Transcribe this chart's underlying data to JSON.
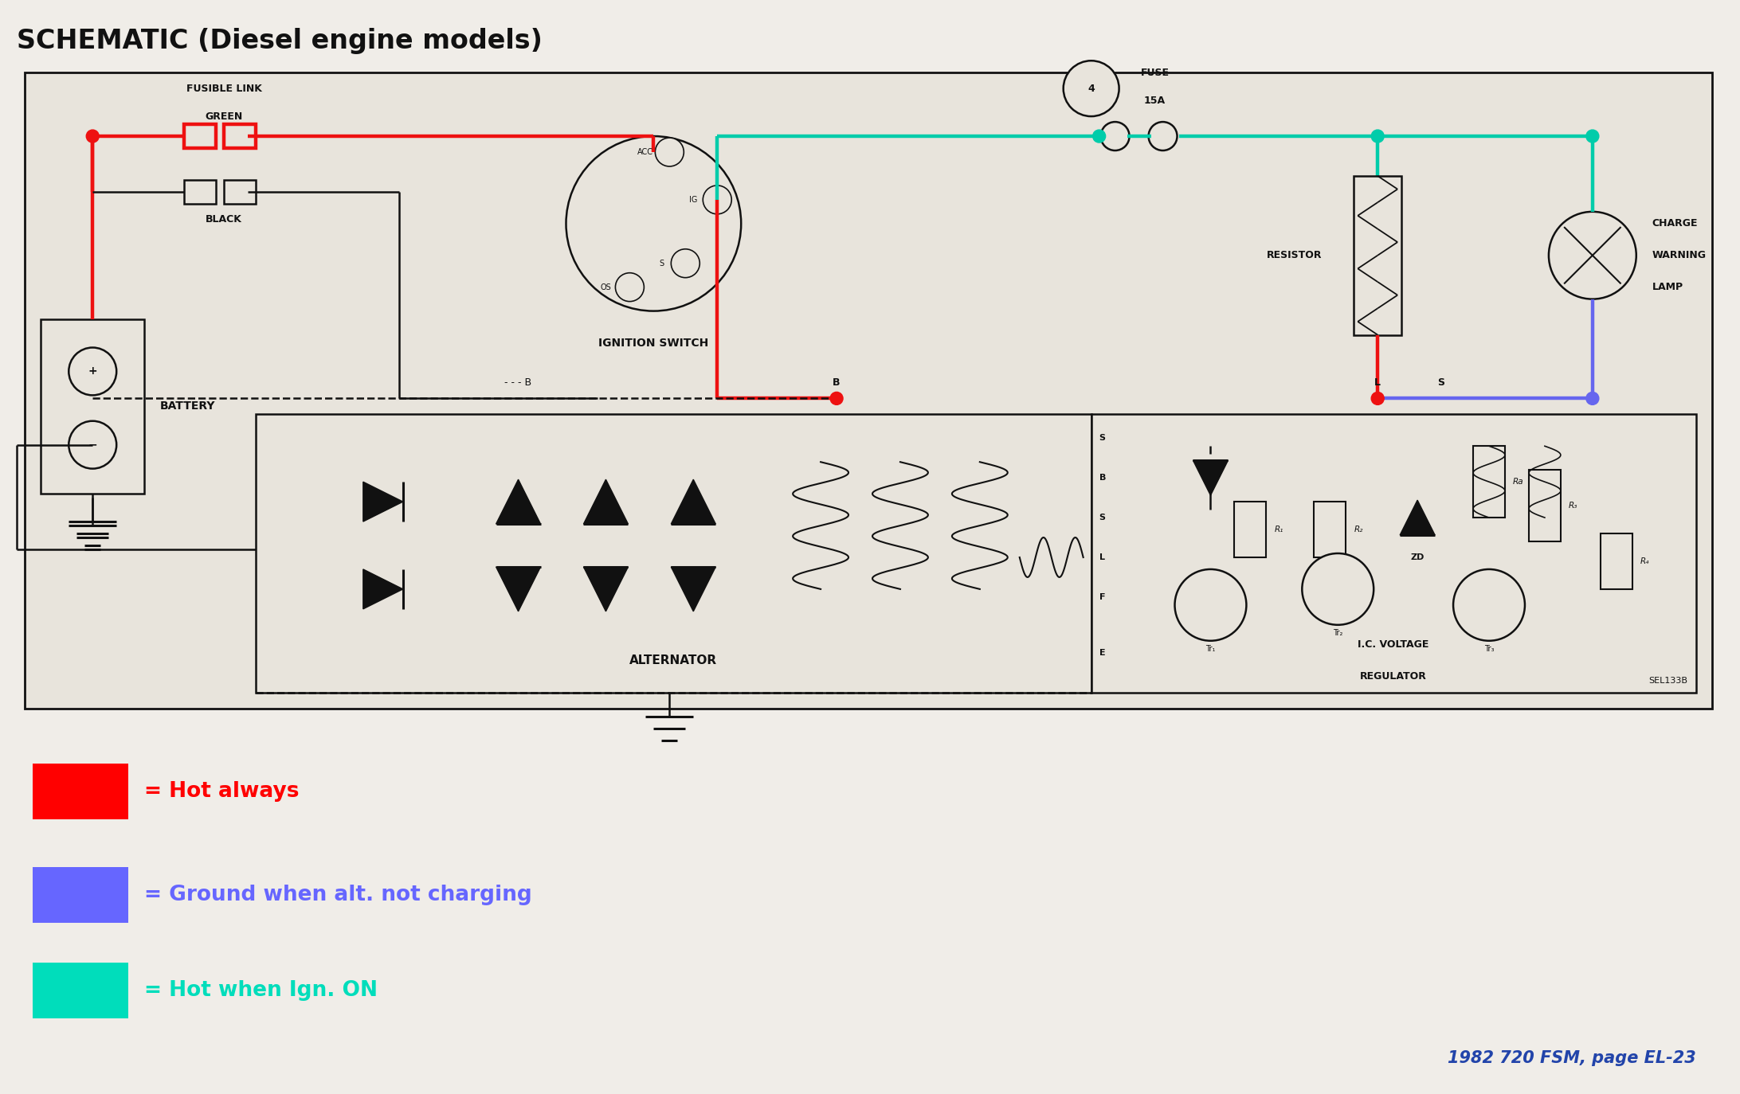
{
  "title": "SCHEMATIC (Diesel engine models)",
  "title_fontsize": 26,
  "bg_color": "#f0ede8",
  "diagram_bg": "#e8e4dc",
  "border_color": "#111111",
  "legend": [
    {
      "color": "#ff0000",
      "label": "= Hot always"
    },
    {
      "color": "#6666ff",
      "label": "= Ground when alt. not charging"
    },
    {
      "color": "#00ddbb",
      "label": "= Hot when Ign. ON"
    }
  ],
  "footnote": "1982 720 FSM, page EL-23",
  "footnote_color": "#2244aa",
  "component_color": "#111111",
  "red": "#ee1111",
  "blue": "#6666ee",
  "cyan": "#00ccaa",
  "figsize": [
    21.84,
    13.74
  ]
}
